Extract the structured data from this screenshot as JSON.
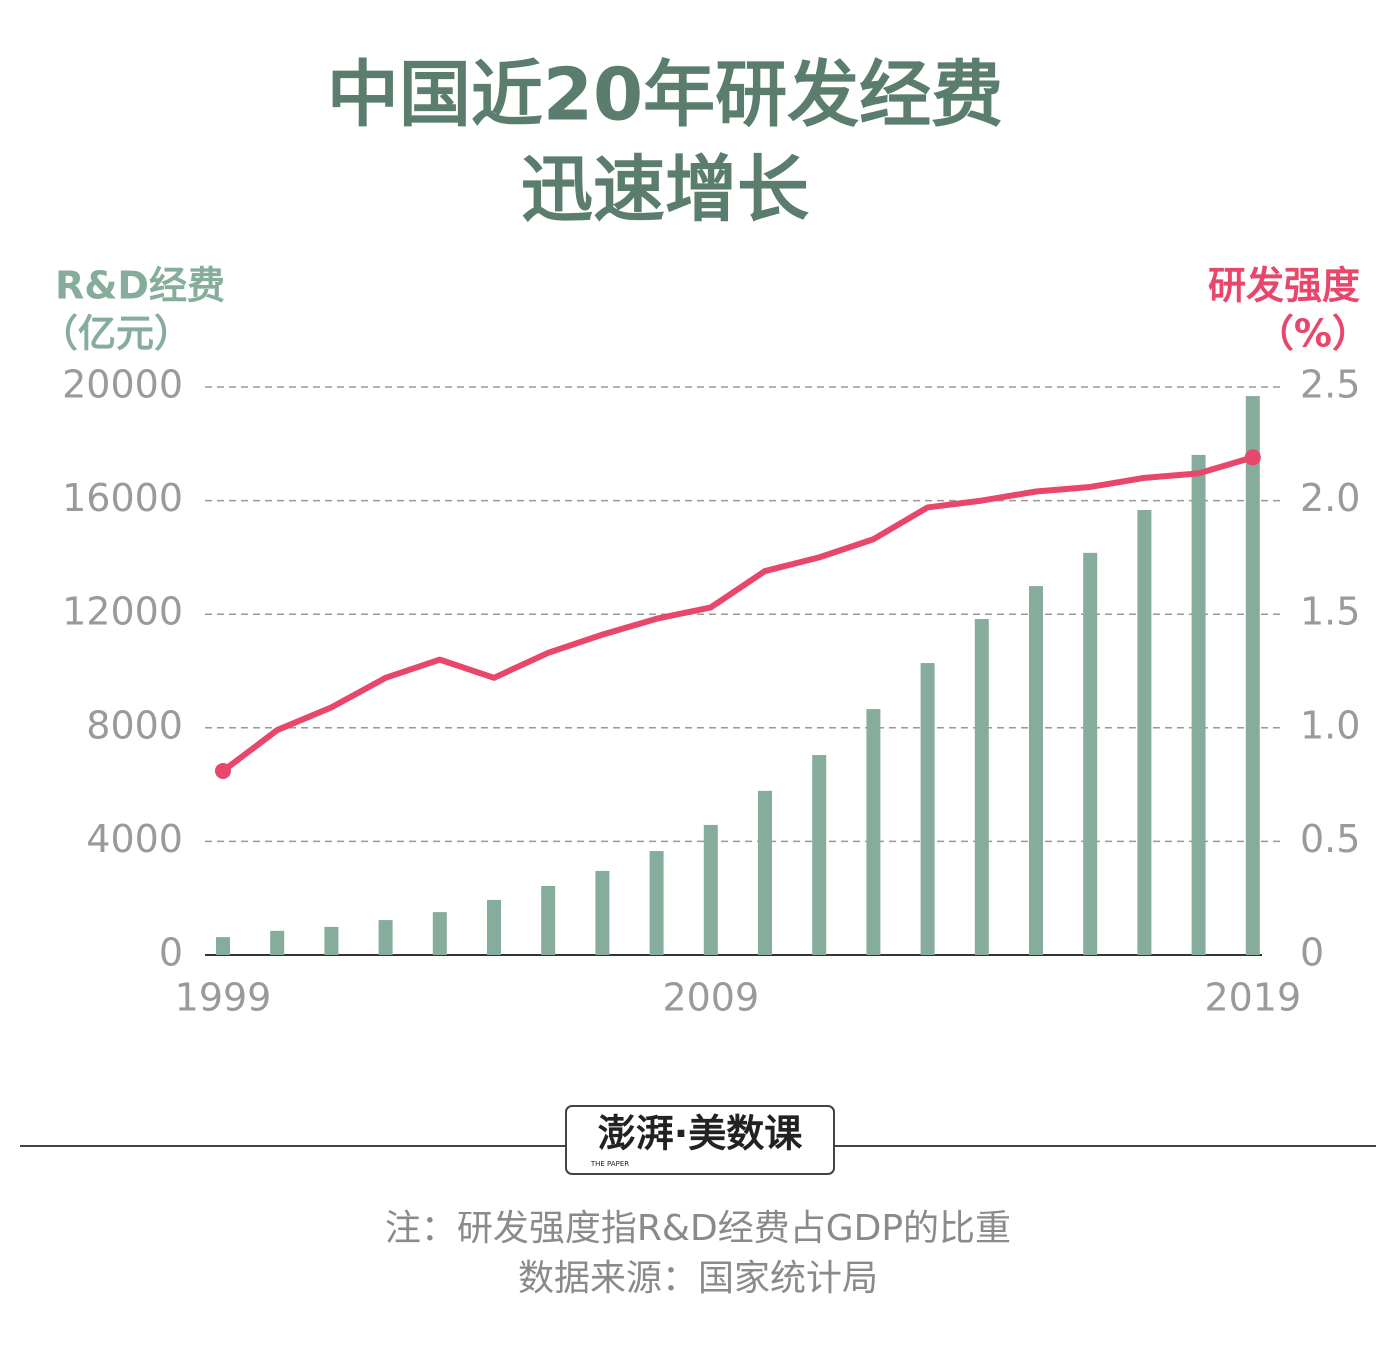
{
  "chart_data": {
    "type": "combo",
    "title": [
      "中国近20年研发经费",
      "迅速增长"
    ],
    "y_label": [
      "R&D经费",
      "（亿元）"
    ],
    "y2_label": [
      "研发强度",
      "（%）"
    ],
    "categories": [
      "1999",
      null,
      null,
      null,
      null,
      null,
      null,
      null,
      null,
      "2009",
      null,
      null,
      null,
      null,
      null,
      null,
      null,
      null,
      null,
      "2019"
    ],
    "series": [
      {
        "type": "bar",
        "color": "#86ad9b",
        "values": [
          630,
          850,
          990,
          1230,
          1510,
          1940,
          2430,
          2960,
          3660,
          4580,
          5780,
          7040,
          8660,
          10280,
          11830,
          12990,
          14160,
          15670,
          17610,
          19680
        ]
      },
      {
        "type": "line",
        "axis": "y2",
        "color": "#e8466a",
        "values": [
          0.81,
          0.99,
          1.09,
          1.22,
          1.3,
          1.22,
          1.33,
          1.41,
          1.48,
          1.53,
          1.69,
          1.75,
          1.83,
          1.97,
          2.0,
          2.04,
          2.06,
          2.1,
          2.12,
          2.19
        ]
      }
    ],
    "ylim": [
      0,
      20000
    ],
    "yticks": [
      0,
      4000,
      8000,
      12000,
      16000,
      20000
    ],
    "y2lim": [
      0,
      2.5
    ],
    "y2ticks": [
      0,
      0.5,
      {
        "value": 1,
        "label": "1.0"
      },
      1.5,
      {
        "value": 2,
        "label": "2.0"
      },
      2.5
    ],
    "grid": true
  },
  "footer": {
    "logo": "澎湃·美数课",
    "logo_sub": "THE PAPER",
    "note": "注：研发强度指R&D经费占GDP的比重",
    "source": "数据来源：国家统计局"
  }
}
